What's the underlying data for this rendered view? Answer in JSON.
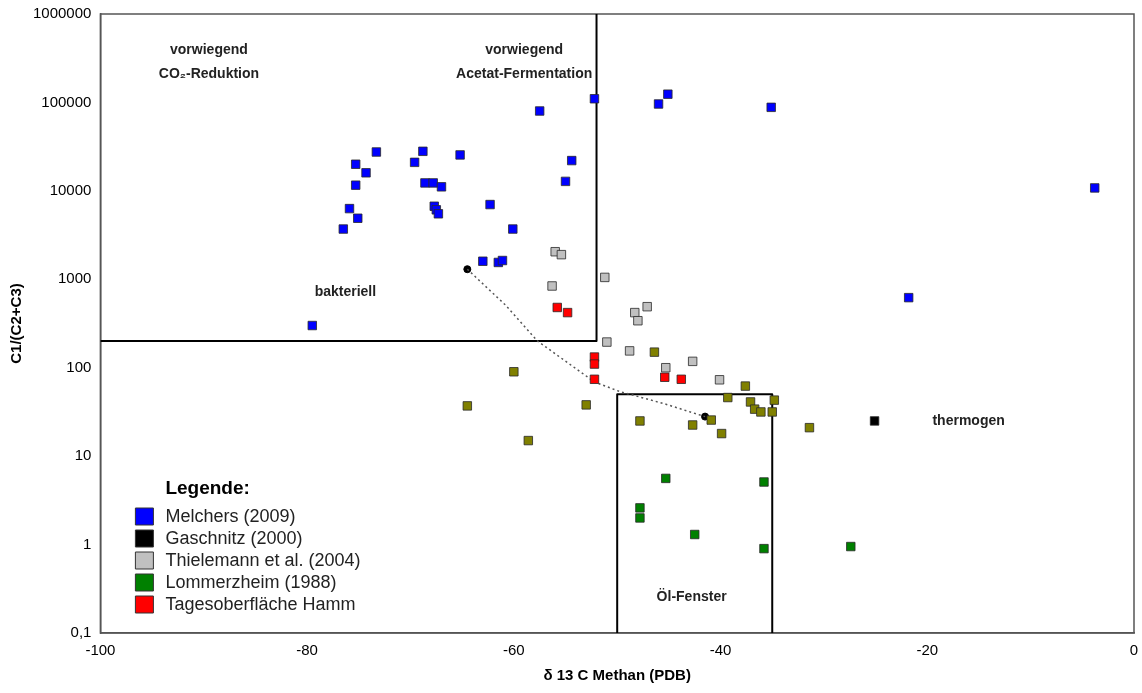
{
  "chart_data": {
    "type": "scatter",
    "xlabel": "δ 13 C Methan (PDB)",
    "ylabel": "C1/(C2+C3)",
    "legend_title": "Legende:",
    "legend": "bottom left",
    "log": "y",
    "grid": false,
    "xlim": [
      -100,
      0
    ],
    "xticks": [
      -100,
      -80,
      -60,
      -40,
      -20,
      0
    ],
    "ylim": [
      0.1,
      1000000
    ],
    "yticks": [
      {
        "value": 0.1,
        "label": "0,1"
      },
      1,
      10,
      100,
      1000,
      10000,
      100000,
      1000000
    ],
    "series": [
      {
        "name": "Melchers (2009)",
        "marker": "square",
        "color": "#0000ff",
        "x": [
          -52.2,
          -57.5,
          -73.3,
          -75.3,
          -74.3,
          -75.3,
          -75.9,
          -75.1,
          -76.5,
          -68.8,
          -69.6,
          -65.2,
          -68.6,
          -67.8,
          -67.0,
          -67.7,
          -67.5,
          -67.3,
          -62.3,
          -60.1,
          -54.4,
          -55.0,
          -63.0,
          -61.5,
          -61.1,
          -79.5,
          -46.0,
          -45.1,
          -35.1,
          -3.8,
          -21.8
        ],
        "values": [
          110000,
          80000,
          27500,
          20000,
          16000,
          11600,
          6300,
          4900,
          3700,
          28000,
          21000,
          25500,
          12300,
          12300,
          11100,
          6700,
          6100,
          5500,
          7000,
          3700,
          22000,
          12800,
          1600,
          1550,
          1630,
          300,
          96000,
          124000,
          88000,
          10800,
          620
        ]
      },
      {
        "name": "Gaschnitz (2000)",
        "marker": "square",
        "color": "#000000",
        "x": [
          -25.1
        ],
        "values": [
          25
        ]
      },
      {
        "name": "Thielemann et al. (2004)",
        "marker": "square",
        "color": "#c0c0c0",
        "x": [
          -56.0,
          -55.4,
          -56.3,
          -51.2,
          -47.1,
          -48.3,
          -48.0,
          -51.0,
          -48.8,
          -45.3,
          -42.7,
          -40.1
        ],
        "values": [
          2050,
          1900,
          840,
          1050,
          490,
          420,
          340,
          195,
          155,
          100,
          118,
          73
        ]
      },
      {
        "name": "Lommerzheim (1988)",
        "marker": "square",
        "color": "#008000",
        "x": [
          -45.3,
          -35.8,
          -47.8,
          -47.8,
          -42.5,
          -35.8,
          -27.4
        ],
        "values": [
          5.6,
          5.1,
          2.6,
          2.0,
          1.3,
          0.9,
          0.95
        ]
      },
      {
        "name": "Tagesoberfläche Hamm",
        "marker": "square",
        "color": "#ff0000",
        "x": [
          -55.8,
          -54.8,
          -52.2,
          -52.2,
          -52.2,
          -45.4,
          -43.8
        ],
        "values": [
          480,
          420,
          132,
          110,
          74,
          78,
          74
        ]
      },
      {
        "marker": "square",
        "color": "#808000",
        "x": [
          -60.0,
          -64.5,
          -53.0,
          -58.6,
          -46.4,
          -47.8,
          -42.7,
          -40.9,
          -39.9,
          -37.6,
          -39.3,
          -37.1,
          -36.7,
          -36.1,
          -34.8,
          -35.0,
          -31.4
        ],
        "values": [
          90,
          37,
          38,
          15,
          150,
          25,
          22.5,
          25.6,
          18,
          62,
          46,
          41,
          34,
          31.6,
          43,
          31.6,
          21
        ]
      },
      {
        "type": "line",
        "marker": "none",
        "line_style": "dotted",
        "color": "#555555",
        "x": [
          -64.5,
          -60.8,
          -57.7,
          -52.2,
          -49.8,
          -45.4,
          -41.5
        ],
        "values": [
          1300,
          510,
          200,
          69,
          54,
          39,
          28
        ]
      },
      {
        "marker": "circle",
        "color": "#000000",
        "x": [
          -64.5,
          -41.5
        ],
        "values": [
          1300,
          28
        ]
      },
      {
        "type": "line",
        "marker": "none",
        "line_style": "solid",
        "color": "#000000",
        "x": [
          -52,
          -52,
          -100
        ],
        "values": [
          1000000,
          200,
          200
        ]
      },
      {
        "type": "line",
        "marker": "none",
        "line_style": "solid",
        "color": "#000000",
        "x": [
          -50,
          -50,
          -35,
          -35
        ],
        "values": [
          0.1,
          50,
          50,
          0.1
        ]
      }
    ],
    "annotations": [
      "vorwiegend\nCO₂-Reduktion",
      "vorwiegend\nAcetat-Fermentation",
      "bakteriell",
      "thermogen",
      "Öl-Fenster"
    ]
  }
}
